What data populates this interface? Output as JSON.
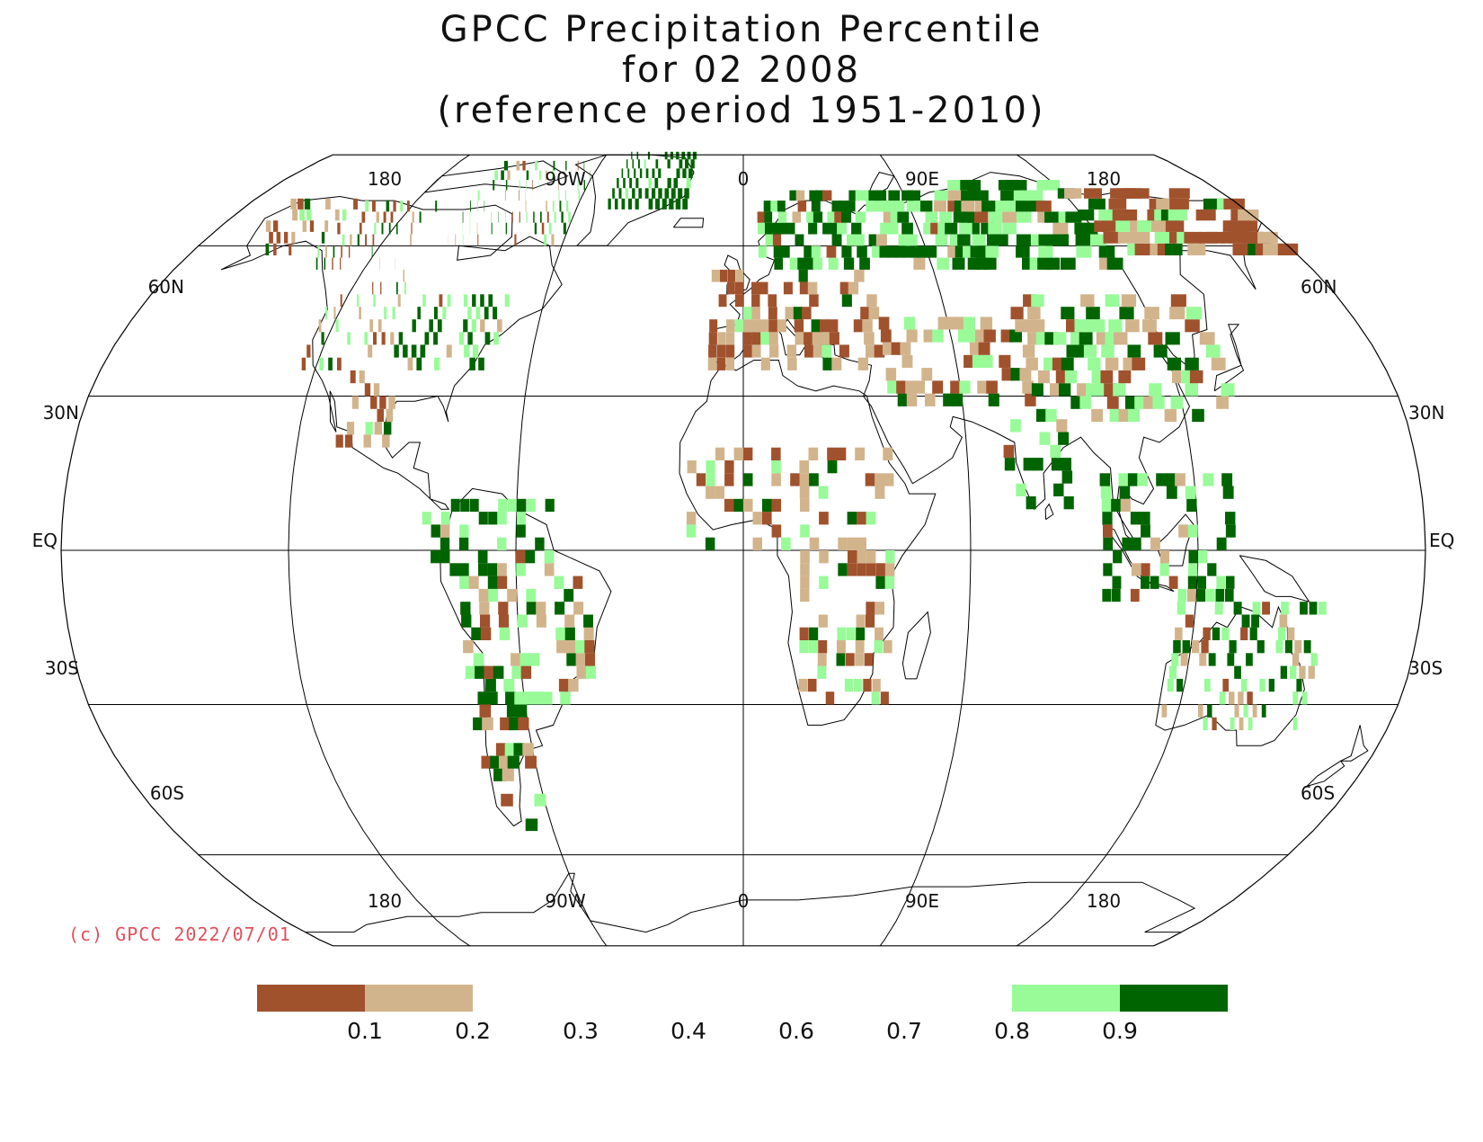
{
  "title": {
    "line1": "GPCC Precipitation Percentile",
    "line2": "for 02 2008",
    "line3": "(reference period 1951-2010)"
  },
  "map": {
    "projection": "robinson",
    "top_lon_labels": [
      "180",
      "90W",
      "0",
      "90E",
      "180"
    ],
    "bottom_lon_labels": [
      "180",
      "90W",
      "0",
      "90E",
      "180"
    ],
    "lat_labels": [
      {
        "lat": 60,
        "left": "60N",
        "right": "60N"
      },
      {
        "lat": 30,
        "left": "30N",
        "right": "30N"
      },
      {
        "lat": 0,
        "left": "EQ",
        "right": "EQ"
      },
      {
        "lat": -30,
        "left": "30S",
        "right": "30S"
      },
      {
        "lat": -60,
        "left": "60S",
        "right": "60S"
      }
    ]
  },
  "copyright": "(c) GPCC 2022/07/01",
  "legend": {
    "colors": [
      "#a0522d",
      "#d2b48c",
      "#ffffff",
      "#ffffff",
      "#ffffff",
      "#ffffff",
      "#ffffff",
      "#98fb98",
      "#006400"
    ],
    "tick_labels": [
      "0.1",
      "0.2",
      "0.3",
      "0.4",
      "0.6",
      "0.7",
      "0.8",
      "0.9"
    ]
  }
}
